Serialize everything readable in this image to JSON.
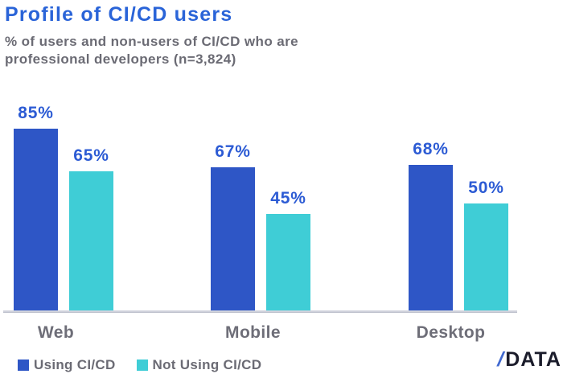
{
  "header": {
    "title": "Profile of CI/CD users",
    "subtitle_line1": "% of users and non-users of CI/CD who are",
    "subtitle_line2": "professional developers (n=3,824)"
  },
  "chart_data": {
    "type": "bar",
    "title": "Profile of CI/CD users",
    "subtitle": "% of users and non-users of CI/CD who are professional developers (n=3,824)",
    "categories": [
      "Web",
      "Mobile",
      "Desktop"
    ],
    "series": [
      {
        "name": "Using CI/CD",
        "color": "#2E56C6",
        "values": [
          85,
          67,
          68
        ]
      },
      {
        "name": "Not Using CI/CD",
        "color": "#3FCDD6",
        "values": [
          65,
          45,
          50
        ]
      }
    ],
    "value_suffix": "%",
    "xlabel": "",
    "ylabel": "",
    "ylim": [
      0,
      100
    ],
    "grid": false,
    "legend_position": "bottom-left"
  },
  "colors": {
    "title_blue": "#2A64D8",
    "value_label_blue": "#2C5BD4",
    "text_gray": "#6B6B74",
    "axis_line": "#D0D2DC",
    "logo_dark": "#1B1C2B",
    "logo_slash_blue": "#4169D0"
  },
  "logo": {
    "slash": "/",
    "text": "DATA"
  }
}
